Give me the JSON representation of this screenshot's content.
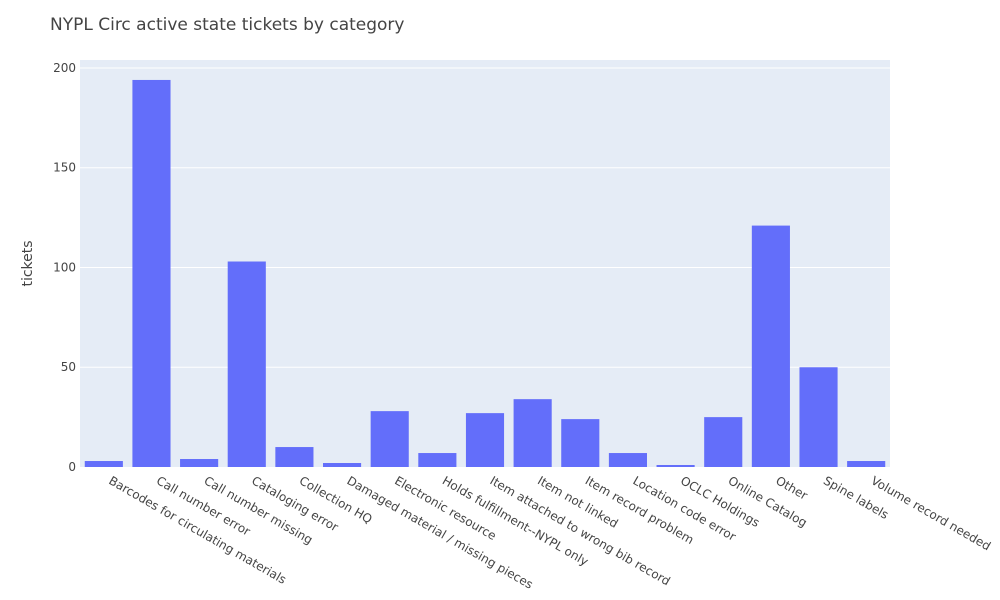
{
  "chart_data": {
    "type": "bar",
    "title": "NYPL Circ active state tickets by category",
    "xlabel": "",
    "ylabel": "tickets",
    "ylim": [
      0,
      204
    ],
    "yticks": [
      0,
      50,
      100,
      150,
      200
    ],
    "grid": true,
    "categories": [
      "Barcodes for circulating materials",
      "Call number error",
      "Call number missing",
      "Cataloging error",
      "Collection HQ",
      "Damaged material / missing pieces",
      "Electronic resource",
      "Holds fulfillment--NYPL only",
      "Item attached to wrong bib record",
      "Item not linked",
      "Item record problem",
      "Location code error",
      "OCLC Holdings",
      "Online Catalog",
      "Other",
      "Spine labels",
      "Volume record needed"
    ],
    "values": [
      3,
      194,
      4,
      103,
      10,
      2,
      28,
      7,
      27,
      34,
      24,
      7,
      1,
      25,
      121,
      50,
      3
    ],
    "colors": {
      "bar": "#636efa",
      "plot_bg": "#e5ecf6",
      "grid": "#ffffff",
      "text": "#444444"
    }
  }
}
